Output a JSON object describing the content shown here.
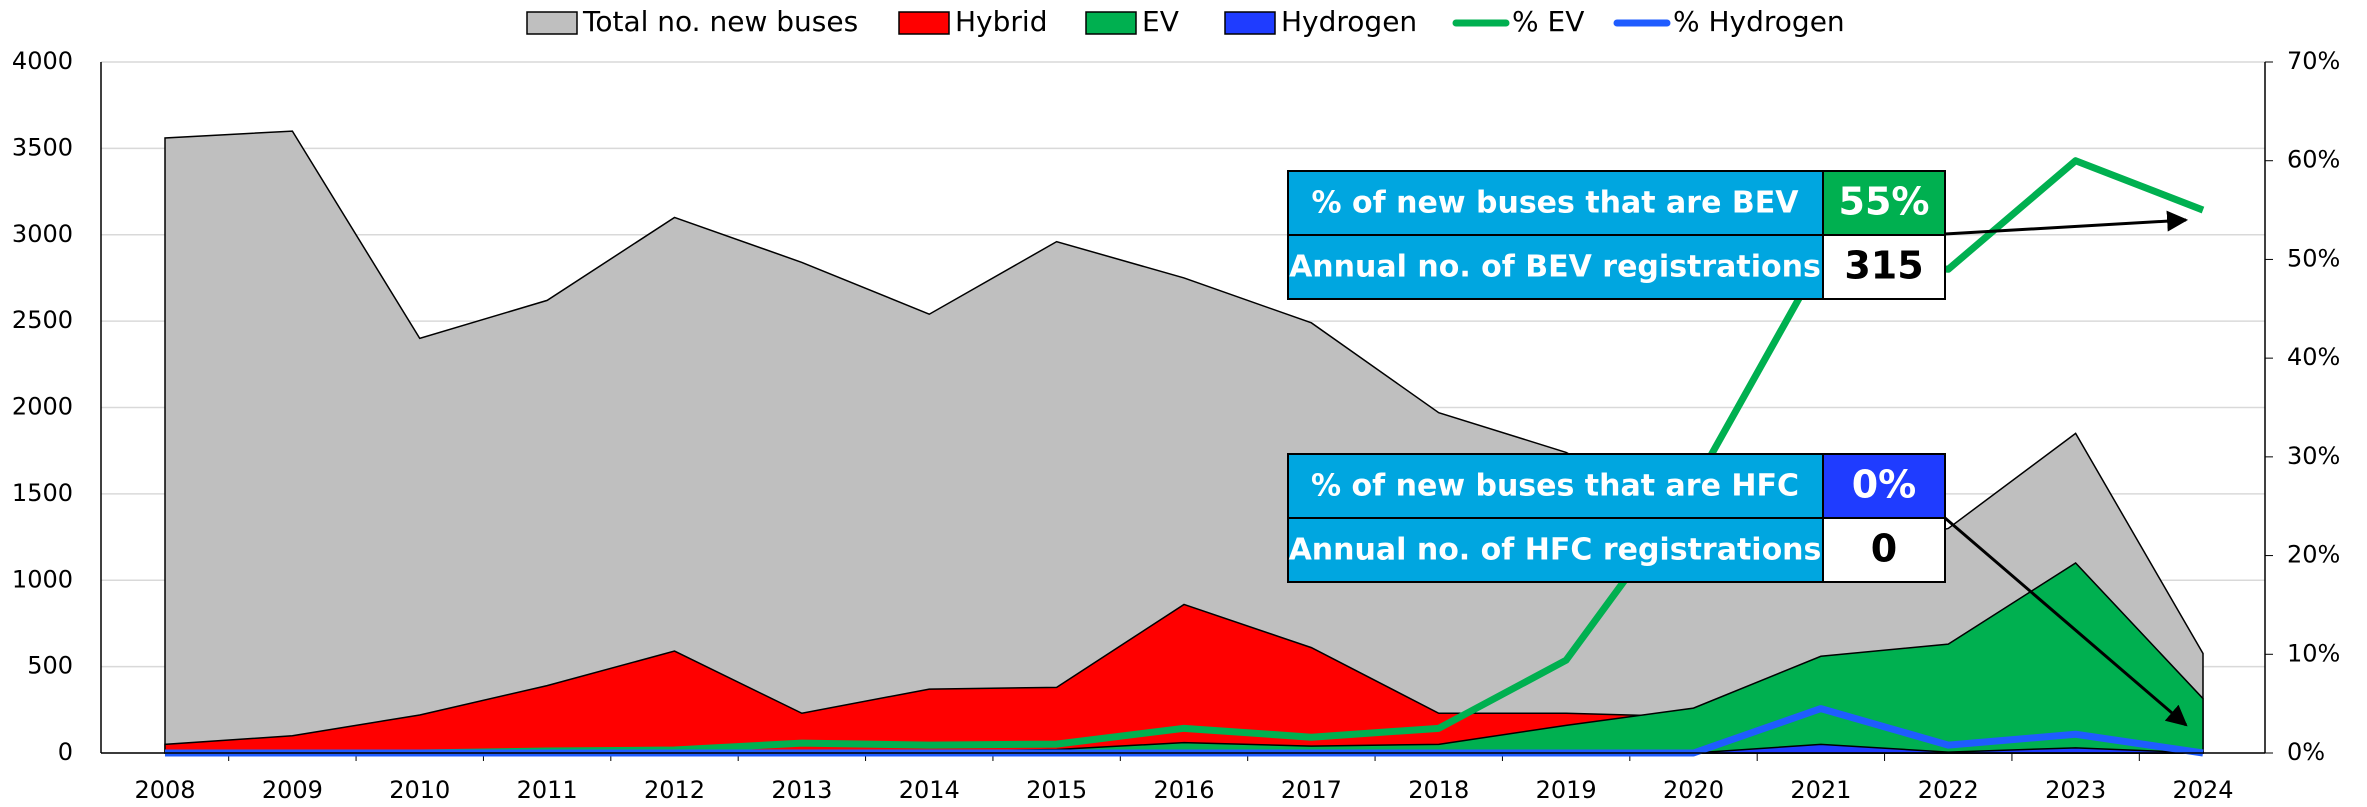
{
  "chart_data": {
    "type": "area",
    "categories": [
      "2008",
      "2009",
      "2010",
      "2011",
      "2012",
      "2013",
      "2014",
      "2015",
      "2016",
      "2017",
      "2018",
      "2019",
      "2020",
      "2021",
      "2022",
      "2023",
      "2024"
    ],
    "series": [
      {
        "name": "Total no. new buses",
        "color": "#bfbfbf",
        "kind": "area",
        "values": [
          3560,
          3600,
          2400,
          2620,
          3100,
          2840,
          2540,
          2960,
          2750,
          2490,
          1970,
          1740,
          1350,
          1150,
          1300,
          1850,
          576
        ]
      },
      {
        "name": "Hybrid",
        "color": "#ff0000",
        "kind": "area",
        "values": [
          50,
          100,
          220,
          390,
          590,
          230,
          370,
          380,
          860,
          610,
          230,
          230,
          210,
          50,
          30,
          20,
          10
        ]
      },
      {
        "name": "EV",
        "color": "#00b050",
        "kind": "area",
        "values": [
          0,
          0,
          0,
          0,
          5,
          10,
          10,
          20,
          60,
          40,
          50,
          160,
          260,
          560,
          630,
          1100,
          315
        ]
      },
      {
        "name": "Hydrogen",
        "color": "#1f3cff",
        "kind": "area",
        "values": [
          0,
          0,
          0,
          0,
          0,
          0,
          0,
          0,
          0,
          0,
          0,
          0,
          0,
          50,
          5,
          30,
          0
        ]
      },
      {
        "name": "% EV",
        "color": "#00b050",
        "kind": "line",
        "axis": "y2",
        "values": [
          0,
          0,
          0,
          0.2,
          0.3,
          1,
          0.8,
          0.9,
          2.5,
          1.6,
          2.5,
          9.4,
          27,
          50,
          49,
          60,
          55
        ]
      },
      {
        "name": "% Hydrogen",
        "color": "#1f5cff",
        "kind": "line",
        "axis": "y2",
        "values": [
          0,
          0,
          0,
          0,
          0,
          0,
          0,
          0,
          0,
          0,
          0,
          0,
          0,
          4.5,
          0.8,
          1.9,
          0
        ]
      }
    ],
    "ylim": [
      0,
      4000
    ],
    "yticks": [
      0,
      500,
      1000,
      1500,
      2000,
      2500,
      3000,
      3500,
      4000
    ],
    "y2lim": [
      0,
      70
    ],
    "y2ticks": [
      {
        "value": 0,
        "label": "0%"
      },
      {
        "value": 10,
        "label": "10%"
      },
      {
        "value": 20,
        "label": "20%"
      },
      {
        "value": 30,
        "label": "30%"
      },
      {
        "value": 40,
        "label": "40%"
      },
      {
        "value": 50,
        "label": "50%"
      },
      {
        "value": 60,
        "label": "60%"
      },
      {
        "value": 70,
        "label": "70%"
      }
    ],
    "grid": true,
    "annotations": [
      {
        "rows": [
          [
            "% of new buses that are BEV",
            "55%"
          ],
          [
            "Annual no. of BEV registrations",
            "315"
          ]
        ],
        "color": "#00b050"
      },
      {
        "rows": [
          [
            "% of new buses that are HFC",
            "0%"
          ],
          [
            "Annual no. of HFC registrations",
            "0"
          ]
        ],
        "color": "#1f3cff"
      }
    ]
  }
}
